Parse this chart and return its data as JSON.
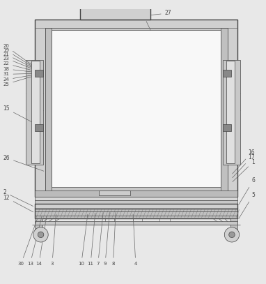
{
  "bg_color": "#e8e8e8",
  "line_color": "#666666",
  "dark_color": "#444444",
  "lw_main": 1.0,
  "lw_thin": 0.5,
  "lw_med": 0.7,
  "fs_label": 5.5,
  "fs_small": 5.0
}
